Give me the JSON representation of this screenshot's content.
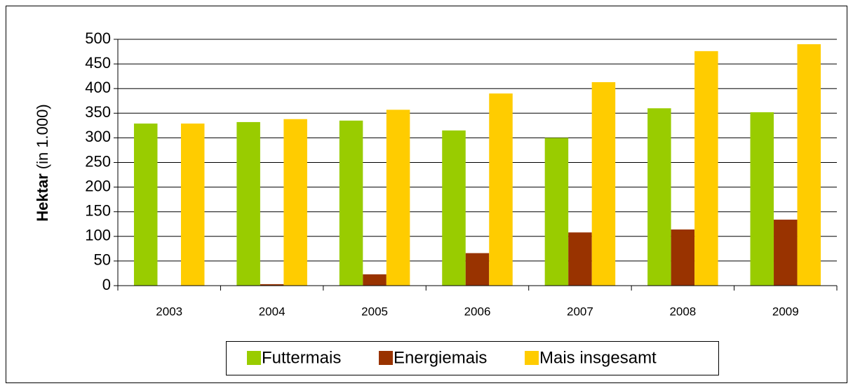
{
  "chart_data": {
    "type": "bar",
    "y_label": "Hektar",
    "y_label_unit": "(in 1.000)",
    "categories": [
      "2003",
      "2004",
      "2005",
      "2006",
      "2007",
      "2008",
      "2009"
    ],
    "series": [
      {
        "name": "Futtermais",
        "color": "#99cc00",
        "values": [
          329,
          332,
          335,
          315,
          300,
          360,
          352
        ]
      },
      {
        "name": "Energiemais",
        "color": "#993300",
        "values": [
          0,
          3,
          23,
          66,
          108,
          114,
          134
        ]
      },
      {
        "name": "Mais insgesamt",
        "color": "#ffcc00",
        "values": [
          329,
          338,
          357,
          390,
          413,
          476,
          490
        ]
      }
    ],
    "ylim": [
      0,
      500
    ],
    "yticks": [
      0,
      50,
      100,
      150,
      200,
      250,
      300,
      350,
      400,
      450,
      500
    ],
    "grid": true,
    "legend": "bottom"
  }
}
